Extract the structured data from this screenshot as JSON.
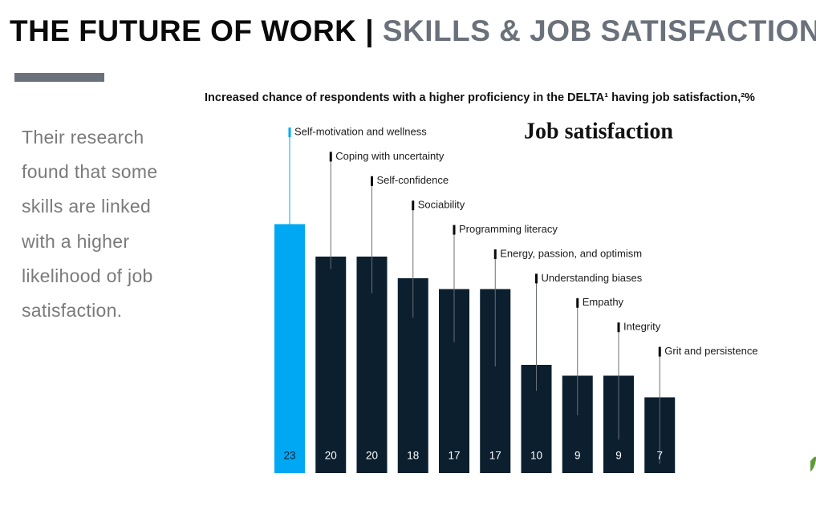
{
  "header": {
    "title": "THE FUTURE OF WORK",
    "separator": "|",
    "subtitle": "SKILLS & JOB SATISFACTION"
  },
  "side_text": "Their research found that some skills are linked with a higher likelihood of job satisfaction.",
  "chart_data": {
    "type": "bar",
    "subtitle": "Increased chance of respondents with a higher proficiency in the DELTA¹ having job satisfaction,²%",
    "title": "Job satisfaction",
    "categories": [
      "Self-motivation and wellness",
      "Coping with uncertainty",
      "Self-confidence",
      "Sociability",
      "Programming literacy",
      "Energy, passion, and optimism",
      "Understanding biases",
      "Empathy",
      "Integrity",
      "Grit and persistence"
    ],
    "values": [
      23,
      20,
      20,
      18,
      17,
      17,
      10,
      9,
      9,
      7
    ],
    "colors": [
      "#00a8f3",
      "#0c1f2e",
      "#0c1f2e",
      "#0c1f2e",
      "#0c1f2e",
      "#0c1f2e",
      "#0c1f2e",
      "#0c1f2e",
      "#0c1f2e",
      "#0c1f2e"
    ]
  }
}
